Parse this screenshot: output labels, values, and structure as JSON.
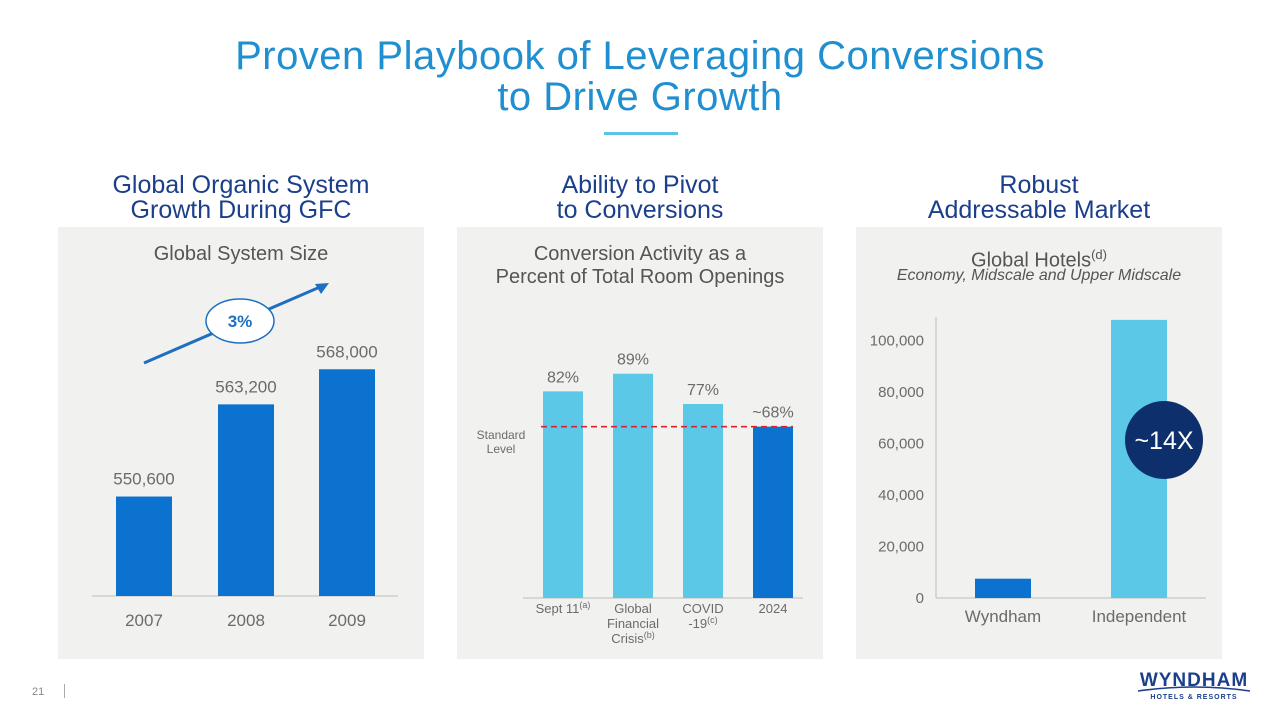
{
  "title_line1": "Proven Playbook of Leveraging Conversions",
  "title_line2": "to Drive Growth",
  "columns": [
    {
      "heading_line1": "Global Organic System",
      "heading_line2": "Growth During GFC"
    },
    {
      "heading_line1": "Ability to Pivot",
      "heading_line2": "to Conversions"
    },
    {
      "heading_line1": "Robust",
      "heading_line2": "Addressable Market"
    }
  ],
  "chart_data": [
    {
      "type": "bar",
      "title": "Global System Size",
      "categories": [
        "2007",
        "2008",
        "2009"
      ],
      "values": [
        550600,
        563200,
        568000
      ],
      "value_labels": [
        "550,600",
        "563,200",
        "568,000"
      ],
      "growth_badge": "3%",
      "ylim": [
        537000,
        572000
      ],
      "bar_color": "#0b73cf"
    },
    {
      "type": "bar",
      "title_line1": "Conversion Activity as a",
      "title_line2": "Percent of Total Room Openings",
      "categories": [
        {
          "lines": [
            "Sept 11"
          ],
          "sup": "(a)"
        },
        {
          "lines": [
            "Global",
            "Financial",
            "Crisis"
          ],
          "sup": "(b)"
        },
        {
          "lines": [
            "COVID",
            "-19"
          ],
          "sup": "(c)"
        },
        {
          "lines": [
            "2024"
          ],
          "sup": ""
        }
      ],
      "values": [
        82,
        89,
        77,
        68
      ],
      "value_labels": [
        "82%",
        "89%",
        "77%",
        "~68%"
      ],
      "bar_colors": [
        "#5bc8e8",
        "#5bc8e8",
        "#5bc8e8",
        "#0b73cf"
      ],
      "reference_line": {
        "value": 68,
        "label_line1": "Standard",
        "label_line2": "Level",
        "color": "#d9232e"
      },
      "ylim": [
        0,
        100
      ]
    },
    {
      "type": "bar",
      "title": "Global Hotels",
      "title_sup": "(d)",
      "subtitle": "Economy, Midscale and Upper Midscale",
      "categories": [
        "Wyndham",
        "Independent"
      ],
      "values": [
        7500,
        108000
      ],
      "bar_colors": [
        "#0b73cf",
        "#5bc8e8"
      ],
      "yticks": [
        0,
        20000,
        40000,
        60000,
        80000,
        100000
      ],
      "ytick_labels": [
        "0",
        "20,000",
        "40,000",
        "60,000",
        "80,000",
        "100,000"
      ],
      "ylim": [
        0,
        110000
      ],
      "callout": "~14X",
      "callout_color": "#0d2f6b"
    }
  ],
  "footer": {
    "page_number": "21"
  },
  "logo": {
    "word": "WYNDHAM",
    "sub": "HOTELS & RESORTS"
  }
}
